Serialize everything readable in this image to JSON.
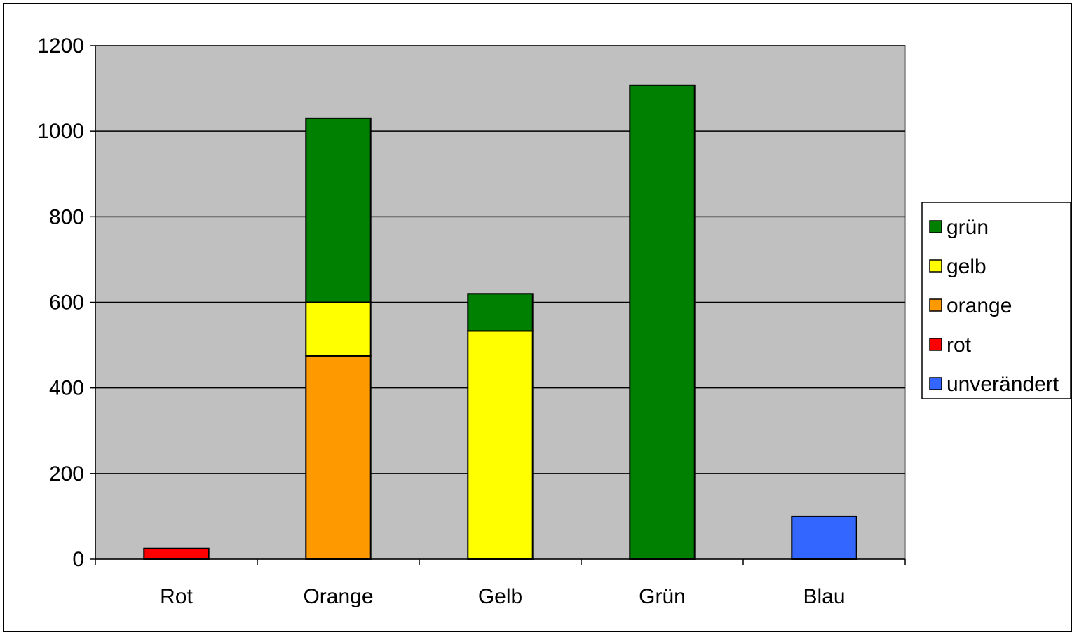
{
  "chart_data": {
    "type": "bar",
    "stacked": true,
    "title": "",
    "xlabel": "",
    "ylabel": "",
    "categories": [
      "Rot",
      "Orange",
      "Gelb",
      "Grün",
      "Blau"
    ],
    "ylim": [
      0,
      1200
    ],
    "yticks": [
      0,
      200,
      400,
      600,
      800,
      1000,
      1200
    ],
    "grid": true,
    "legend_position": "right",
    "plot_background": "#c0c0c0",
    "series": [
      {
        "name": "unverändert",
        "color": "#3366ff",
        "values": [
          0,
          0,
          0,
          0,
          100
        ]
      },
      {
        "name": "rot",
        "color": "#ff0000",
        "values": [
          25,
          0,
          0,
          0,
          0
        ]
      },
      {
        "name": "orange",
        "color": "#ff9900",
        "values": [
          0,
          475,
          0,
          0,
          0
        ]
      },
      {
        "name": "gelb",
        "color": "#ffff00",
        "values": [
          0,
          125,
          533,
          0,
          0
        ]
      },
      {
        "name": "grün",
        "color": "#008000",
        "values": [
          0,
          430,
          87,
          1107,
          0
        ]
      }
    ],
    "legend_order": [
      "grün",
      "gelb",
      "orange",
      "rot",
      "unverändert"
    ]
  }
}
